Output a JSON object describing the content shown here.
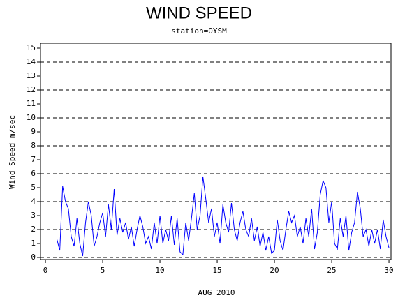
{
  "chart_data": {
    "type": "line",
    "title": "WIND SPEED",
    "subtitle": "station=OYSM",
    "x_label": "AUG 2010",
    "y_label": "Wind Speed m/sec",
    "xlim": [
      -0.43,
      30.18
    ],
    "ylim": [
      -0.15,
      15.35
    ],
    "xticks": [
      0,
      5,
      10,
      15,
      20,
      25,
      30
    ],
    "yticks": [
      0,
      1,
      2,
      3,
      4,
      5,
      6,
      7,
      8,
      9,
      10,
      11,
      12,
      13,
      14,
      15
    ],
    "gridlines": [
      0,
      2,
      4,
      6,
      8,
      10,
      12,
      14
    ],
    "grid_style": "dashed",
    "series": [
      {
        "name": "Wind Speed",
        "color": "#0000ff",
        "x": [
          1.0,
          1.25,
          1.5,
          1.75,
          2.0,
          2.25,
          2.5,
          2.75,
          3.0,
          3.25,
          3.5,
          3.75,
          4.0,
          4.25,
          4.5,
          4.75,
          5.0,
          5.25,
          5.5,
          5.75,
          6.0,
          6.25,
          6.5,
          6.75,
          7.0,
          7.25,
          7.5,
          7.75,
          8.0,
          8.25,
          8.5,
          8.75,
          9.0,
          9.25,
          9.5,
          9.75,
          10.0,
          10.25,
          10.5,
          10.75,
          11.0,
          11.25,
          11.5,
          11.75,
          12.0,
          12.25,
          12.5,
          12.75,
          13.0,
          13.25,
          13.5,
          13.75,
          14.0,
          14.25,
          14.5,
          14.75,
          15.0,
          15.25,
          15.5,
          15.75,
          16.0,
          16.25,
          16.5,
          16.75,
          17.0,
          17.25,
          17.5,
          17.75,
          18.0,
          18.25,
          18.5,
          18.75,
          19.0,
          19.25,
          19.5,
          19.75,
          20.0,
          20.25,
          20.5,
          20.75,
          21.0,
          21.25,
          21.5,
          21.75,
          22.0,
          22.25,
          22.5,
          22.75,
          23.0,
          23.25,
          23.5,
          23.75,
          24.0,
          24.25,
          24.5,
          24.75,
          25.0,
          25.25,
          25.5,
          25.75,
          26.0,
          26.25,
          26.5,
          26.75,
          27.0,
          27.25,
          27.5,
          27.75,
          28.0,
          28.25,
          28.5,
          28.75,
          29.0,
          29.25,
          29.5,
          29.75,
          30.0
        ],
        "values": [
          1.3,
          0.5,
          5.1,
          4.0,
          3.5,
          1.5,
          0.8,
          2.8,
          1.0,
          0.1,
          2.5,
          4.0,
          3.0,
          0.8,
          1.5,
          2.5,
          3.2,
          1.5,
          3.8,
          2.0,
          4.9,
          1.6,
          2.8,
          1.8,
          2.5,
          1.3,
          2.2,
          0.8,
          2.0,
          3.0,
          2.2,
          1.0,
          1.5,
          0.6,
          2.5,
          1.0,
          3.0,
          1.0,
          2.0,
          1.2,
          3.0,
          0.9,
          2.8,
          0.4,
          0.2,
          2.5,
          1.2,
          2.8,
          4.6,
          2.0,
          3.0,
          5.8,
          4.2,
          2.5,
          3.5,
          1.5,
          2.5,
          1.0,
          3.8,
          2.5,
          1.8,
          3.9,
          2.0,
          1.2,
          2.5,
          3.3,
          2.0,
          1.5,
          2.8,
          1.2,
          2.2,
          0.8,
          1.8,
          0.5,
          1.5,
          0.3,
          0.5,
          2.7,
          1.2,
          0.5,
          2.0,
          3.3,
          2.5,
          3.0,
          1.5,
          2.2,
          1.0,
          2.8,
          1.5,
          3.5,
          0.6,
          1.8,
          4.5,
          5.5,
          5.0,
          2.5,
          4.0,
          1.0,
          0.6,
          2.8,
          1.5,
          3.0,
          0.5,
          1.8,
          2.5,
          4.7,
          3.5,
          1.5,
          2.0,
          0.8,
          2.0,
          1.0,
          2.0,
          0.6,
          2.7,
          1.5,
          0.7
        ]
      }
    ]
  }
}
